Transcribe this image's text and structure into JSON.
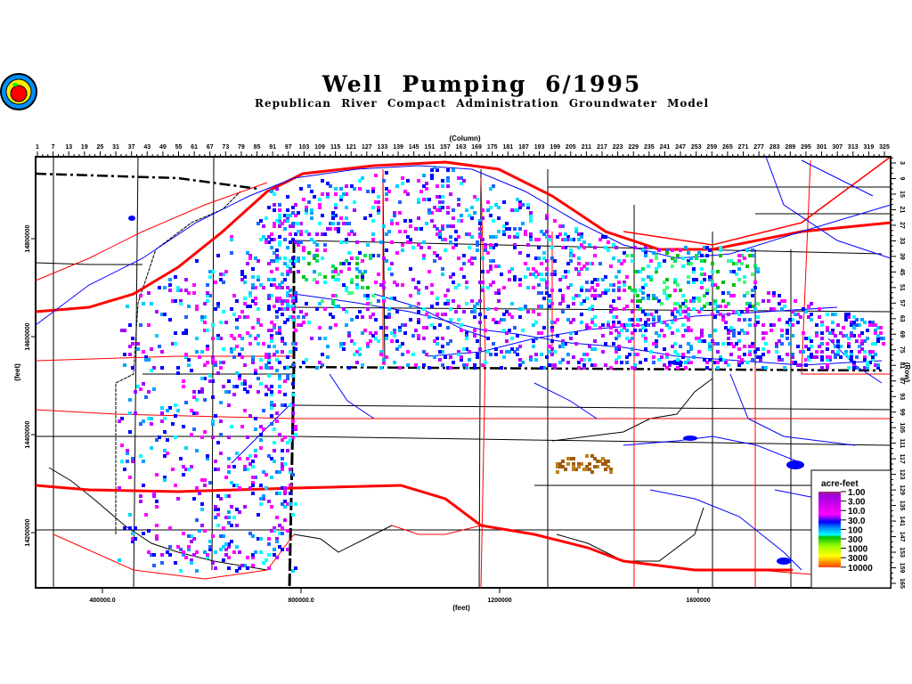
{
  "header": {
    "title": "Well Pumping 6/1995",
    "subtitle": "Republican River Compact Administration Groundwater Model",
    "logo_icon": "apple-seal-logo"
  },
  "chart_data": {
    "type": "heatmap",
    "title": "Well Pumping 6/1995",
    "subtitle": "Republican River Compact Administration Groundwater Model",
    "top_axis": {
      "label": "(Column)",
      "ticks": [
        "1",
        "7",
        "13",
        "19",
        "25",
        "31",
        "37",
        "43",
        "49",
        "55",
        "61",
        "67",
        "73",
        "79",
        "85",
        "91",
        "97",
        "103",
        "109",
        "115",
        "121",
        "127",
        "133",
        "139",
        "145",
        "151",
        "157",
        "163",
        "169",
        "175",
        "181",
        "187",
        "193",
        "199",
        "205",
        "211",
        "217",
        "223",
        "229",
        "235",
        "241",
        "247",
        "253",
        "259",
        "265",
        "271",
        "277",
        "283",
        "289",
        "295",
        "301",
        "307",
        "313",
        "319",
        "325"
      ],
      "range": [
        1,
        325
      ]
    },
    "right_axis": {
      "label": "(Row)",
      "ticks": [
        "3",
        "9",
        "15",
        "21",
        "27",
        "33",
        "39",
        "45",
        "51",
        "57",
        "63",
        "69",
        "75",
        "81",
        "87",
        "93",
        "99",
        "105",
        "111",
        "117",
        "123",
        "129",
        "135",
        "141",
        "147",
        "153",
        "159",
        "165"
      ],
      "range": [
        3,
        165
      ]
    },
    "bottom_axis": {
      "label": "(feet)",
      "ticks": [
        "400000.0",
        "800000.0",
        "1200000",
        "1600000"
      ],
      "values": [
        400000,
        800000,
        1200000,
        1600000
      ],
      "range": [
        265000,
        1995000
      ]
    },
    "left_axis": {
      "label": "(feet)",
      "ticks": [
        "14800000",
        "14600000",
        "14400000",
        "14200000"
      ],
      "values": [
        14800000,
        14600000,
        14400000,
        14200000
      ]
    },
    "legend": {
      "title": "acre-feet",
      "labels": [
        "1.00",
        "3.00",
        "10.0",
        "30.0",
        "100",
        "300",
        "1000",
        "3000",
        "10000"
      ],
      "colors": [
        "#a0306a",
        "#a000e0",
        "#ff00ff",
        "#0000ff",
        "#00a0ff",
        "#00ffff",
        "#00b000",
        "#ffff00",
        "#ff4000"
      ]
    },
    "colors": {
      "roads": "#ff0000",
      "rivers": "#0000ff",
      "boundaries": "#000000"
    }
  }
}
